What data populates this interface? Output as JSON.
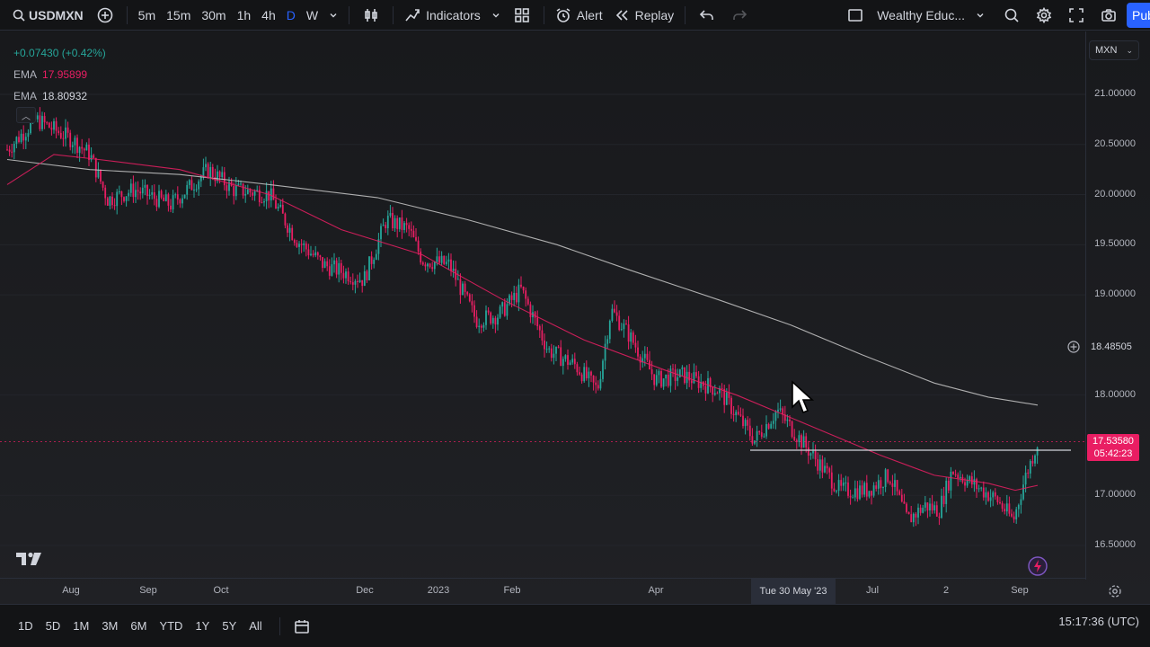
{
  "toolbar": {
    "symbol": "USDMXN",
    "timeframes": [
      "5m",
      "15m",
      "30m",
      "1h",
      "4h",
      "D",
      "W"
    ],
    "active_timeframe": "D",
    "indicators_label": "Indicators",
    "alert_label": "Alert",
    "replay_label": "Replay",
    "layout_name": "Wealthy Educ...",
    "publish_label": "Pub"
  },
  "legend": {
    "change": "+0.07430 (+0.42%)",
    "ema_fast_name": "EMA",
    "ema_fast_value": "17.95899",
    "ema_slow_name": "EMA",
    "ema_slow_value": "18.80932"
  },
  "price_scale": {
    "currency": "MXN",
    "labels": [
      "21.00000",
      "20.50000",
      "20.00000",
      "19.50000",
      "19.00000",
      "18.00000",
      "17.00000",
      "16.50000"
    ],
    "crosshair_price": "18.48505",
    "last_price": "17.53580",
    "countdown": "05:42:23"
  },
  "time_scale": {
    "labels": [
      "Aug",
      "Sep",
      "Oct",
      "Dec",
      "2023",
      "Feb",
      "Apr",
      "Jul",
      "2",
      "Sep"
    ],
    "crosshair_date": "Tue 30 May '23"
  },
  "bottom_bar": {
    "ranges": [
      "1D",
      "5D",
      "1M",
      "3M",
      "6M",
      "YTD",
      "1Y",
      "5Y",
      "All"
    ],
    "clock": "15:17:36 (UTC)"
  },
  "colors": {
    "up": "#26a69a",
    "down": "#e91e63",
    "ema_fast": "#e91e63",
    "ema_slow": "#c8c8c8",
    "accent": "#2962ff"
  },
  "chart_data": {
    "type": "candlestick",
    "symbol": "USDMXN",
    "interval": "D",
    "ylim": [
      16.3,
      21.4
    ],
    "approx_close_path": [
      {
        "x": "Aug 2022",
        "y": 20.5
      },
      {
        "x": "Sep 2022",
        "y": 20.1
      },
      {
        "x": "Oct 2022",
        "y": 20.0
      },
      {
        "x": "Nov 2022",
        "y": 19.4
      },
      {
        "x": "Dec 2022",
        "y": 19.8
      },
      {
        "x": "Jan 2023",
        "y": 19.3
      },
      {
        "x": "Feb 2023",
        "y": 18.7
      },
      {
        "x": "Mar 2023",
        "y": 18.6
      },
      {
        "x": "Apr 2023",
        "y": 18.1
      },
      {
        "x": "May 2023",
        "y": 17.6
      },
      {
        "x": "Jun 2023",
        "y": 17.1
      },
      {
        "x": "Jul 2023",
        "y": 16.9
      },
      {
        "x": "Aug 2023",
        "y": 17.1
      },
      {
        "x": "Sep 2023",
        "y": 17.5358
      }
    ],
    "horizontal_line": 17.45,
    "ema_fast_last": 17.95899,
    "ema_slow_last": 18.80932
  }
}
